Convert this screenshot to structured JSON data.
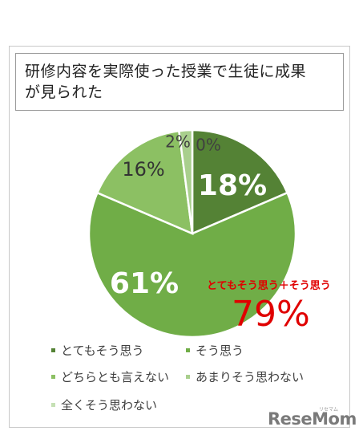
{
  "title_lines": [
    "研修内容を実際使った授業で生徒に成果",
    "が見られた"
  ],
  "chart_data": {
    "type": "pie",
    "title": "研修内容を実際使った授業で生徒に成果が見られた",
    "categories": [
      "とてもそう思う",
      "そう思う",
      "どちらとも言えない",
      "あまりそう思わない",
      "全くそう思わない"
    ],
    "values": [
      18,
      61,
      16,
      2,
      0
    ],
    "labels": [
      "18%",
      "61%",
      "16%",
      "2%",
      "0%"
    ],
    "colors": [
      "#548235",
      "#70ad47",
      "#8cc063",
      "#a9cf8d",
      "#c5e0b4"
    ],
    "legend_position": "bottom"
  },
  "annotation": {
    "label": "とてもそう思う＋そう思う",
    "value": "79%"
  },
  "watermark": {
    "logo": "ReseMom",
    "small": "リセマム"
  }
}
